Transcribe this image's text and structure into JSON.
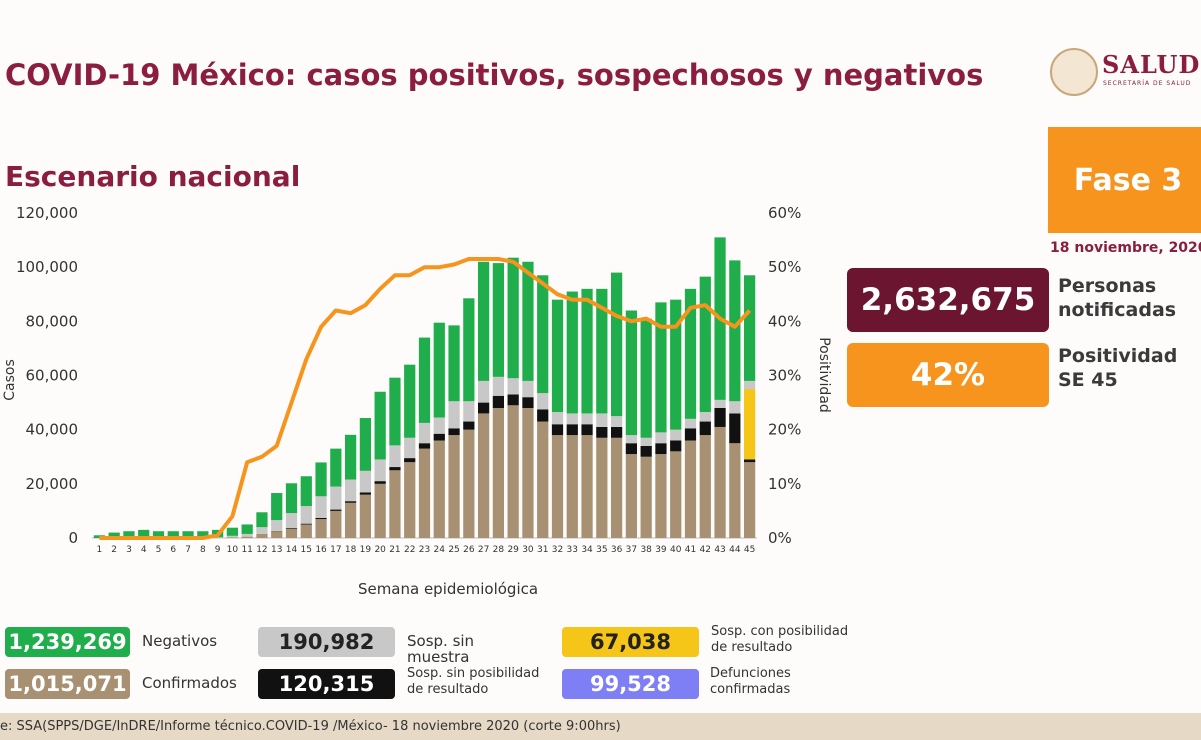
{
  "header": {
    "title": "COVID-19 México: casos positivos, sospechosos y negativos",
    "logo": "SALUD",
    "logo_subtitle": "SECRETARÍA DE SALUD",
    "phase": "Fase 3",
    "date": "18 noviembre, 2020"
  },
  "highlights": {
    "notified": "2,632,675",
    "notified_label": "Personas notificadas",
    "positivity": "42%",
    "positivity_label": "Positividad SE 45"
  },
  "extra_legend": {
    "total": "99,528",
    "label": "Defunciones confirmadas",
    "color": "#7f7ff5"
  },
  "source": "e: SSA(SPPS/DGE/InDRE/Informe técnico.COVID-19 /México- 18 noviembre 2020 (corte 9:00hrs)",
  "chart_data": {
    "type": "bar",
    "title": "Escenario nacional",
    "xlabel": "Semana epidemiológica",
    "ylabel": "Casos",
    "y2label": "Positividad",
    "stacked": true,
    "categories": [
      "1",
      "2",
      "3",
      "4",
      "5",
      "6",
      "7",
      "8",
      "9",
      "10",
      "11",
      "12",
      "13",
      "14",
      "15",
      "16",
      "17",
      "18",
      "19",
      "20",
      "21",
      "22",
      "23",
      "24",
      "25",
      "26",
      "27",
      "28",
      "29",
      "30",
      "31",
      "32",
      "33",
      "34",
      "35",
      "36",
      "37",
      "38",
      "39",
      "40",
      "41",
      "42",
      "43",
      "44",
      "45"
    ],
    "series": [
      {
        "name": "Confirmados",
        "total": "1,015,071",
        "color": "#a89072",
        "values": [
          0,
          0,
          0,
          0,
          0,
          0,
          0,
          0,
          100,
          300,
          500,
          1500,
          2500,
          3500,
          5000,
          7000,
          10000,
          13000,
          16000,
          20000,
          25000,
          28000,
          33000,
          36000,
          38000,
          40000,
          46000,
          48000,
          49000,
          48000,
          43000,
          38000,
          38000,
          38000,
          37000,
          37000,
          31000,
          30000,
          31000,
          32000,
          36000,
          38000,
          41000,
          35000,
          28000
        ]
      },
      {
        "name": "Sosp. sin posibilidad de resultado",
        "total": "120,315",
        "color": "#111111",
        "values": [
          0,
          0,
          0,
          0,
          0,
          0,
          0,
          0,
          0,
          0,
          0,
          0,
          100,
          200,
          300,
          400,
          500,
          600,
          800,
          1000,
          1200,
          1500,
          2000,
          2500,
          2500,
          3000,
          4000,
          4500,
          4000,
          4000,
          4500,
          4000,
          4000,
          4000,
          4000,
          4000,
          4000,
          4000,
          4000,
          4000,
          4500,
          5000,
          7000,
          11000,
          1000
        ]
      },
      {
        "name": "Sosp. con posibilidad de resultado",
        "total": "67,038",
        "color": "#f5c518",
        "values": [
          0,
          0,
          0,
          0,
          0,
          0,
          0,
          0,
          0,
          0,
          0,
          0,
          0,
          0,
          0,
          0,
          0,
          0,
          0,
          0,
          0,
          0,
          0,
          0,
          0,
          0,
          0,
          0,
          0,
          0,
          0,
          0,
          0,
          0,
          0,
          0,
          0,
          0,
          0,
          0,
          0,
          0,
          0,
          0,
          26000
        ]
      },
      {
        "name": "Sosp. sin muestra",
        "total": "190,982",
        "color": "#c8c8c8",
        "values": [
          0,
          0,
          0,
          0,
          0,
          0,
          0,
          0,
          200,
          500,
          1000,
          2500,
          4000,
          5500,
          6500,
          8000,
          8500,
          8000,
          8000,
          8000,
          8000,
          7500,
          7500,
          6000,
          10000,
          7500,
          8000,
          7000,
          6000,
          6000,
          6000,
          4500,
          4000,
          4000,
          5000,
          4000,
          3000,
          3000,
          4000,
          4000,
          3500,
          3500,
          3000,
          4500,
          3000
        ]
      },
      {
        "name": "Negativos",
        "total": "1,239,269",
        "color": "#1fae4b",
        "values": [
          1000,
          2000,
          2500,
          3000,
          2500,
          2500,
          2500,
          2500,
          2700,
          3000,
          3500,
          5500,
          10000,
          11000,
          11000,
          12500,
          14000,
          16500,
          19500,
          25000,
          25000,
          27000,
          31500,
          35000,
          28000,
          38000,
          44000,
          42000,
          44500,
          44000,
          43500,
          41500,
          45000,
          46000,
          46000,
          53000,
          46000,
          44000,
          48000,
          48000,
          48000,
          50000,
          60000,
          52000,
          39000
        ]
      },
      {
        "type": "line",
        "axis": "y2",
        "color": "#f7941d",
        "values": [
          0,
          0,
          0,
          0,
          0,
          0,
          0,
          0,
          0.5,
          4,
          14,
          15,
          17,
          25,
          33,
          39,
          42,
          41.5,
          43,
          46,
          48.5,
          48.5,
          50,
          50,
          50.5,
          51.5,
          51.5,
          51.5,
          51,
          49,
          47,
          45,
          44,
          44,
          42.5,
          41,
          40,
          40.5,
          39,
          39,
          42.5,
          43,
          40.5,
          39,
          42
        ]
      }
    ],
    "ylim": [
      0,
      120000
    ],
    "yticks": [
      0,
      {
        "value": 20000,
        "label": "20,000"
      },
      {
        "value": 40000,
        "label": "40,000"
      },
      {
        "value": 60000,
        "label": "60,000"
      },
      {
        "value": 80000,
        "label": "80,000"
      },
      {
        "value": 100000,
        "label": "100,000"
      },
      {
        "value": 120000,
        "label": "120,000"
      }
    ],
    "y2lim": [
      0,
      60
    ],
    "y2ticks": [
      {
        "value": 0,
        "label": "0%"
      },
      {
        "value": 10,
        "label": "10%"
      },
      {
        "value": 20,
        "label": "20%"
      },
      {
        "value": 30,
        "label": "30%"
      },
      {
        "value": 40,
        "label": "40%"
      },
      {
        "value": 50,
        "label": "50%"
      },
      {
        "value": 60,
        "label": "60%"
      }
    ],
    "grid": false
  }
}
